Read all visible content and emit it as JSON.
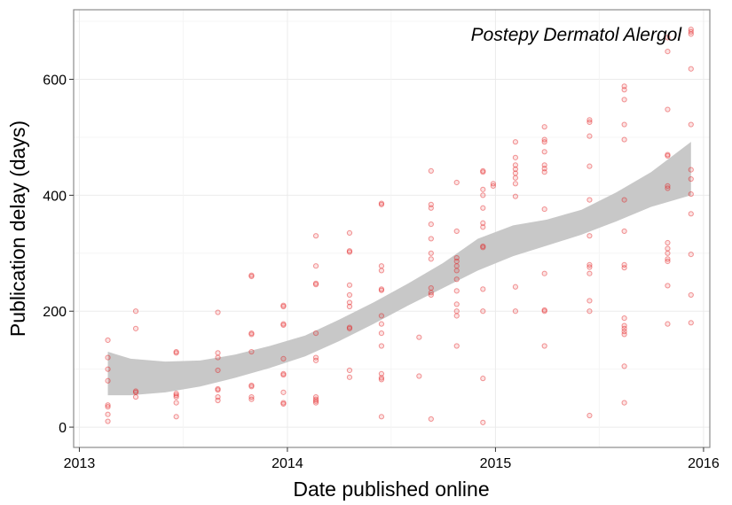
{
  "chart_data": {
    "type": "scatter",
    "title": "",
    "annotation": "Postepy Dermatol Alergol",
    "xlabel": "Date published online",
    "ylabel": "Publication delay (days)",
    "xlim": [
      "2012-12-22",
      "2016-01-12"
    ],
    "ylim": [
      -35,
      720
    ],
    "x_ticks": [
      "2013",
      "2014",
      "2015",
      "2016"
    ],
    "y_ticks": [
      0,
      200,
      400,
      600
    ],
    "grid": true,
    "colors": {
      "points": "#e31a1c",
      "band": "#c8c8c8",
      "grid": "#ebebeb",
      "border": "#8c8c8c"
    },
    "points": [
      {
        "x": "2013-02-20",
        "y": 150
      },
      {
        "x": "2013-02-20",
        "y": 120
      },
      {
        "x": "2013-02-20",
        "y": 100
      },
      {
        "x": "2013-02-20",
        "y": 80
      },
      {
        "x": "2013-02-20",
        "y": 38
      },
      {
        "x": "2013-02-20",
        "y": 35
      },
      {
        "x": "2013-02-20",
        "y": 22
      },
      {
        "x": "2013-02-20",
        "y": 10
      },
      {
        "x": "2013-04-10",
        "y": 200
      },
      {
        "x": "2013-04-10",
        "y": 170
      },
      {
        "x": "2013-04-10",
        "y": 62
      },
      {
        "x": "2013-04-10",
        "y": 60
      },
      {
        "x": "2013-04-10",
        "y": 52
      },
      {
        "x": "2013-06-20",
        "y": 130
      },
      {
        "x": "2013-06-20",
        "y": 128
      },
      {
        "x": "2013-06-20",
        "y": 58
      },
      {
        "x": "2013-06-20",
        "y": 55
      },
      {
        "x": "2013-06-20",
        "y": 52
      },
      {
        "x": "2013-06-20",
        "y": 42
      },
      {
        "x": "2013-06-20",
        "y": 18
      },
      {
        "x": "2013-09-01",
        "y": 198
      },
      {
        "x": "2013-09-01",
        "y": 128
      },
      {
        "x": "2013-09-01",
        "y": 120
      },
      {
        "x": "2013-09-01",
        "y": 98
      },
      {
        "x": "2013-09-01",
        "y": 66
      },
      {
        "x": "2013-09-01",
        "y": 64
      },
      {
        "x": "2013-09-01",
        "y": 52
      },
      {
        "x": "2013-09-01",
        "y": 46
      },
      {
        "x": "2013-10-30",
        "y": 262
      },
      {
        "x": "2013-10-30",
        "y": 260
      },
      {
        "x": "2013-10-30",
        "y": 162
      },
      {
        "x": "2013-10-30",
        "y": 160
      },
      {
        "x": "2013-10-30",
        "y": 130
      },
      {
        "x": "2013-10-30",
        "y": 72
      },
      {
        "x": "2013-10-30",
        "y": 70
      },
      {
        "x": "2013-10-30",
        "y": 52
      },
      {
        "x": "2013-10-30",
        "y": 48
      },
      {
        "x": "2013-12-25",
        "y": 210
      },
      {
        "x": "2013-12-25",
        "y": 208
      },
      {
        "x": "2013-12-25",
        "y": 178
      },
      {
        "x": "2013-12-25",
        "y": 176
      },
      {
        "x": "2013-12-25",
        "y": 118
      },
      {
        "x": "2013-12-25",
        "y": 92
      },
      {
        "x": "2013-12-25",
        "y": 90
      },
      {
        "x": "2013-12-25",
        "y": 60
      },
      {
        "x": "2013-12-25",
        "y": 42
      },
      {
        "x": "2013-12-25",
        "y": 40
      },
      {
        "x": "2014-02-20",
        "y": 330
      },
      {
        "x": "2014-02-20",
        "y": 278
      },
      {
        "x": "2014-02-20",
        "y": 248
      },
      {
        "x": "2014-02-20",
        "y": 246
      },
      {
        "x": "2014-02-20",
        "y": 162
      },
      {
        "x": "2014-02-20",
        "y": 120
      },
      {
        "x": "2014-02-20",
        "y": 115
      },
      {
        "x": "2014-02-20",
        "y": 52
      },
      {
        "x": "2014-02-20",
        "y": 48
      },
      {
        "x": "2014-02-20",
        "y": 45
      },
      {
        "x": "2014-02-20",
        "y": 42
      },
      {
        "x": "2014-04-20",
        "y": 335
      },
      {
        "x": "2014-04-20",
        "y": 304
      },
      {
        "x": "2014-04-20",
        "y": 302
      },
      {
        "x": "2014-04-20",
        "y": 245
      },
      {
        "x": "2014-04-20",
        "y": 228
      },
      {
        "x": "2014-04-20",
        "y": 215
      },
      {
        "x": "2014-04-20",
        "y": 208
      },
      {
        "x": "2014-04-20",
        "y": 172
      },
      {
        "x": "2014-04-20",
        "y": 170
      },
      {
        "x": "2014-04-20",
        "y": 98
      },
      {
        "x": "2014-04-20",
        "y": 86
      },
      {
        "x": "2014-06-15",
        "y": 386
      },
      {
        "x": "2014-06-15",
        "y": 384
      },
      {
        "x": "2014-06-15",
        "y": 278
      },
      {
        "x": "2014-06-15",
        "y": 270
      },
      {
        "x": "2014-06-15",
        "y": 238
      },
      {
        "x": "2014-06-15",
        "y": 236
      },
      {
        "x": "2014-06-15",
        "y": 192
      },
      {
        "x": "2014-06-15",
        "y": 178
      },
      {
        "x": "2014-06-15",
        "y": 162
      },
      {
        "x": "2014-06-15",
        "y": 140
      },
      {
        "x": "2014-06-15",
        "y": 92
      },
      {
        "x": "2014-06-15",
        "y": 85
      },
      {
        "x": "2014-06-15",
        "y": 82
      },
      {
        "x": "2014-06-15",
        "y": 18
      },
      {
        "x": "2014-08-20",
        "y": 155
      },
      {
        "x": "2014-08-20",
        "y": 88
      },
      {
        "x": "2014-09-10",
        "y": 442
      },
      {
        "x": "2014-09-10",
        "y": 384
      },
      {
        "x": "2014-09-10",
        "y": 378
      },
      {
        "x": "2014-09-10",
        "y": 350
      },
      {
        "x": "2014-09-10",
        "y": 325
      },
      {
        "x": "2014-09-10",
        "y": 300
      },
      {
        "x": "2014-09-10",
        "y": 290
      },
      {
        "x": "2014-09-10",
        "y": 240
      },
      {
        "x": "2014-09-10",
        "y": 232
      },
      {
        "x": "2014-09-10",
        "y": 228
      },
      {
        "x": "2014-09-10",
        "y": 14
      },
      {
        "x": "2014-10-25",
        "y": 422
      },
      {
        "x": "2014-10-25",
        "y": 338
      },
      {
        "x": "2014-10-25",
        "y": 292
      },
      {
        "x": "2014-10-25",
        "y": 286
      },
      {
        "x": "2014-10-25",
        "y": 278
      },
      {
        "x": "2014-10-25",
        "y": 270
      },
      {
        "x": "2014-10-25",
        "y": 255
      },
      {
        "x": "2014-10-25",
        "y": 235
      },
      {
        "x": "2014-10-25",
        "y": 212
      },
      {
        "x": "2014-10-25",
        "y": 200
      },
      {
        "x": "2014-10-25",
        "y": 192
      },
      {
        "x": "2014-10-25",
        "y": 140
      },
      {
        "x": "2014-12-10",
        "y": 442
      },
      {
        "x": "2014-12-10",
        "y": 440
      },
      {
        "x": "2014-12-10",
        "y": 410
      },
      {
        "x": "2014-12-10",
        "y": 400
      },
      {
        "x": "2014-12-10",
        "y": 378
      },
      {
        "x": "2014-12-10",
        "y": 352
      },
      {
        "x": "2014-12-10",
        "y": 345
      },
      {
        "x": "2014-12-10",
        "y": 312
      },
      {
        "x": "2014-12-10",
        "y": 310
      },
      {
        "x": "2014-12-10",
        "y": 238
      },
      {
        "x": "2014-12-10",
        "y": 200
      },
      {
        "x": "2014-12-10",
        "y": 84
      },
      {
        "x": "2014-12-10",
        "y": 8
      },
      {
        "x": "2014-12-28",
        "y": 420
      },
      {
        "x": "2014-12-28",
        "y": 416
      },
      {
        "x": "2015-02-05",
        "y": 492
      },
      {
        "x": "2015-02-05",
        "y": 465
      },
      {
        "x": "2015-02-05",
        "y": 452
      },
      {
        "x": "2015-02-05",
        "y": 445
      },
      {
        "x": "2015-02-05",
        "y": 438
      },
      {
        "x": "2015-02-05",
        "y": 430
      },
      {
        "x": "2015-02-05",
        "y": 420
      },
      {
        "x": "2015-02-05",
        "y": 398
      },
      {
        "x": "2015-02-05",
        "y": 242
      },
      {
        "x": "2015-02-05",
        "y": 200
      },
      {
        "x": "2015-03-28",
        "y": 518
      },
      {
        "x": "2015-03-28",
        "y": 496
      },
      {
        "x": "2015-03-28",
        "y": 492
      },
      {
        "x": "2015-03-28",
        "y": 475
      },
      {
        "x": "2015-03-28",
        "y": 452
      },
      {
        "x": "2015-03-28",
        "y": 446
      },
      {
        "x": "2015-03-28",
        "y": 440
      },
      {
        "x": "2015-03-28",
        "y": 376
      },
      {
        "x": "2015-03-28",
        "y": 265
      },
      {
        "x": "2015-03-28",
        "y": 202
      },
      {
        "x": "2015-03-28",
        "y": 200
      },
      {
        "x": "2015-03-28",
        "y": 140
      },
      {
        "x": "2015-06-15",
        "y": 530
      },
      {
        "x": "2015-06-15",
        "y": 526
      },
      {
        "x": "2015-06-15",
        "y": 502
      },
      {
        "x": "2015-06-15",
        "y": 450
      },
      {
        "x": "2015-06-15",
        "y": 392
      },
      {
        "x": "2015-06-15",
        "y": 330
      },
      {
        "x": "2015-06-15",
        "y": 280
      },
      {
        "x": "2015-06-15",
        "y": 276
      },
      {
        "x": "2015-06-15",
        "y": 265
      },
      {
        "x": "2015-06-15",
        "y": 218
      },
      {
        "x": "2015-06-15",
        "y": 200
      },
      {
        "x": "2015-06-15",
        "y": 20
      },
      {
        "x": "2015-08-15",
        "y": 588
      },
      {
        "x": "2015-08-15",
        "y": 582
      },
      {
        "x": "2015-08-15",
        "y": 565
      },
      {
        "x": "2015-08-15",
        "y": 522
      },
      {
        "x": "2015-08-15",
        "y": 496
      },
      {
        "x": "2015-08-15",
        "y": 392
      },
      {
        "x": "2015-08-15",
        "y": 338
      },
      {
        "x": "2015-08-15",
        "y": 280
      },
      {
        "x": "2015-08-15",
        "y": 275
      },
      {
        "x": "2015-08-15",
        "y": 188
      },
      {
        "x": "2015-08-15",
        "y": 175
      },
      {
        "x": "2015-08-15",
        "y": 170
      },
      {
        "x": "2015-08-15",
        "y": 165
      },
      {
        "x": "2015-08-15",
        "y": 160
      },
      {
        "x": "2015-08-15",
        "y": 105
      },
      {
        "x": "2015-08-15",
        "y": 42
      },
      {
        "x": "2015-10-30",
        "y": 672
      },
      {
        "x": "2015-10-30",
        "y": 648
      },
      {
        "x": "2015-10-30",
        "y": 548
      },
      {
        "x": "2015-10-30",
        "y": 470
      },
      {
        "x": "2015-10-30",
        "y": 468
      },
      {
        "x": "2015-10-30",
        "y": 416
      },
      {
        "x": "2015-10-30",
        "y": 412
      },
      {
        "x": "2015-10-30",
        "y": 318
      },
      {
        "x": "2015-10-30",
        "y": 308
      },
      {
        "x": "2015-10-30",
        "y": 300
      },
      {
        "x": "2015-10-30",
        "y": 290
      },
      {
        "x": "2015-10-30",
        "y": 286
      },
      {
        "x": "2015-10-30",
        "y": 244
      },
      {
        "x": "2015-10-30",
        "y": 178
      },
      {
        "x": "2015-12-10",
        "y": 686
      },
      {
        "x": "2015-12-10",
        "y": 682
      },
      {
        "x": "2015-12-10",
        "y": 678
      },
      {
        "x": "2015-12-10",
        "y": 618
      },
      {
        "x": "2015-12-10",
        "y": 522
      },
      {
        "x": "2015-12-10",
        "y": 444
      },
      {
        "x": "2015-12-10",
        "y": 428
      },
      {
        "x": "2015-12-10",
        "y": 402
      },
      {
        "x": "2015-12-10",
        "y": 368
      },
      {
        "x": "2015-12-10",
        "y": 298
      },
      {
        "x": "2015-12-10",
        "y": 228
      },
      {
        "x": "2015-12-10",
        "y": 180
      }
    ],
    "smooth_band": [
      {
        "x": "2013-02-20",
        "lower": 55,
        "upper": 130
      },
      {
        "x": "2013-04-01",
        "lower": 55,
        "upper": 118
      },
      {
        "x": "2013-06-01",
        "lower": 60,
        "upper": 113
      },
      {
        "x": "2013-08-01",
        "lower": 70,
        "upper": 115
      },
      {
        "x": "2013-10-01",
        "lower": 85,
        "upper": 125
      },
      {
        "x": "2013-12-01",
        "lower": 102,
        "upper": 140
      },
      {
        "x": "2014-02-01",
        "lower": 122,
        "upper": 158
      },
      {
        "x": "2014-04-01",
        "lower": 148,
        "upper": 185
      },
      {
        "x": "2014-06-01",
        "lower": 178,
        "upper": 215
      },
      {
        "x": "2014-08-01",
        "lower": 210,
        "upper": 248
      },
      {
        "x": "2014-10-01",
        "lower": 240,
        "upper": 283
      },
      {
        "x": "2014-12-01",
        "lower": 270,
        "upper": 325
      },
      {
        "x": "2015-02-01",
        "lower": 295,
        "upper": 348
      },
      {
        "x": "2015-04-01",
        "lower": 313,
        "upper": 358
      },
      {
        "x": "2015-06-01",
        "lower": 332,
        "upper": 375
      },
      {
        "x": "2015-08-01",
        "lower": 355,
        "upper": 405
      },
      {
        "x": "2015-10-01",
        "lower": 380,
        "upper": 440
      },
      {
        "x": "2015-12-10",
        "lower": 400,
        "upper": 492
      }
    ]
  }
}
